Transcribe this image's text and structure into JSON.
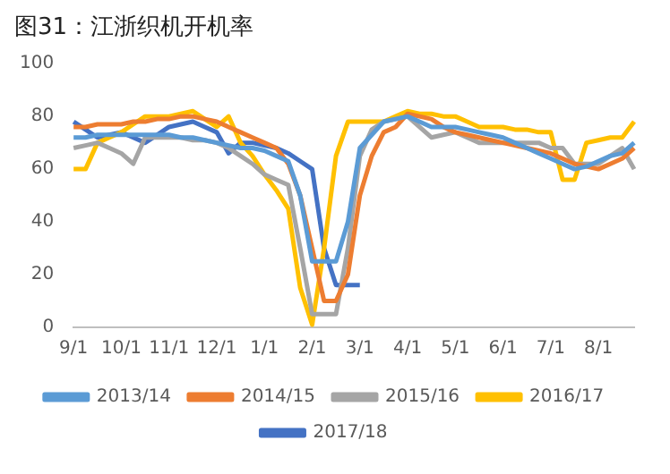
{
  "chart_data": {
    "type": "line",
    "title": "图31：江浙织机开机率",
    "categories": [
      "9/1",
      null,
      null,
      null,
      "10/1",
      null,
      null,
      null,
      "11/1",
      null,
      null,
      null,
      "12/1",
      null,
      null,
      null,
      "1/1",
      null,
      null,
      null,
      "2/1",
      null,
      null,
      null,
      "3/1",
      null,
      null,
      null,
      "4/1",
      null,
      null,
      null,
      "5/1",
      null,
      null,
      null,
      "6/1",
      null,
      null,
      null,
      "7/1",
      null,
      null,
      null,
      "8/1",
      null,
      null,
      null
    ],
    "ylim": [
      0,
      100
    ],
    "yticks": [
      0,
      20,
      40,
      60,
      80,
      100
    ],
    "grid": false,
    "legend": "bottom",
    "marker": "none",
    "series": [
      {
        "name": "2013/14",
        "color": "#5b9bd5",
        "values": [
          72,
          72,
          73,
          73,
          73,
          73,
          73,
          73,
          73,
          72,
          72,
          71,
          70,
          69,
          68,
          68,
          67,
          65,
          63,
          50,
          25,
          25,
          25,
          40,
          68,
          73,
          78,
          79,
          80,
          78,
          76,
          76,
          76,
          75,
          74,
          73,
          72,
          70,
          68,
          66,
          64,
          62,
          60,
          61,
          63,
          65,
          66,
          70
        ]
      },
      {
        "name": "2014/15",
        "color": "#ed7d31",
        "values": [
          76,
          76,
          77,
          77,
          77,
          78,
          78,
          79,
          79,
          80,
          80,
          79,
          78,
          76,
          74,
          72,
          70,
          68,
          62,
          50,
          30,
          10,
          10,
          20,
          50,
          65,
          74,
          76,
          81,
          80,
          79,
          76,
          74,
          73,
          72,
          71,
          70,
          69,
          68,
          67,
          66,
          64,
          62,
          61,
          60,
          62,
          64,
          68
        ]
      },
      {
        "name": "2015/16",
        "color": "#a5a5a5",
        "values": [
          68,
          69,
          70,
          68,
          66,
          62,
          72,
          72,
          72,
          72,
          71,
          71,
          70,
          68,
          65,
          62,
          58,
          56,
          54,
          30,
          5,
          5,
          5,
          30,
          65,
          75,
          78,
          79,
          80,
          76,
          72,
          73,
          74,
          72,
          70,
          70,
          70,
          70,
          70,
          70,
          68,
          68,
          62,
          62,
          62,
          65,
          68,
          60
        ]
      },
      {
        "name": "2016/17",
        "color": "#ffc000",
        "values": [
          60,
          60,
          70,
          72,
          74,
          77,
          80,
          80,
          80,
          81,
          82,
          79,
          76,
          80,
          70,
          65,
          58,
          52,
          45,
          15,
          1,
          30,
          65,
          78,
          78,
          78,
          78,
          80,
          82,
          81,
          81,
          80,
          80,
          78,
          76,
          76,
          76,
          75,
          75,
          74,
          74,
          56,
          56,
          70,
          71,
          72,
          72,
          78
        ]
      },
      {
        "name": "2017/18",
        "color": "#4472c4",
        "values": [
          78,
          75,
          72,
          73,
          74,
          72,
          70,
          73,
          76,
          77,
          78,
          76,
          74,
          66,
          70,
          70,
          69,
          68,
          66,
          63,
          60,
          30,
          16,
          16,
          16,
          null,
          null,
          null,
          null,
          null,
          null,
          null,
          null,
          null,
          null,
          null,
          null,
          null,
          null,
          null,
          null,
          null,
          null,
          null,
          null,
          null,
          null,
          null
        ]
      }
    ]
  }
}
